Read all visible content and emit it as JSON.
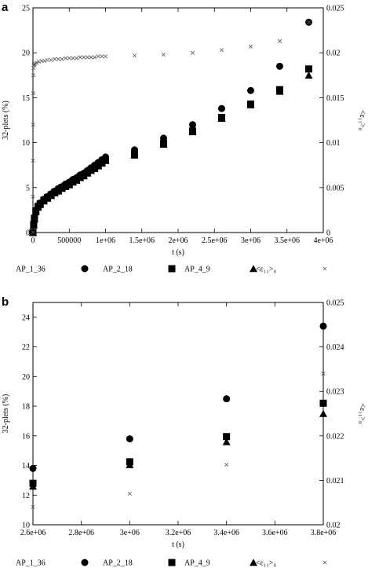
{
  "chart_data": [
    {
      "panel": "a",
      "type": "scatter",
      "xlabel": "t (s)",
      "ylabel": "32-plets (%)",
      "y2label": "<ε₁₁>₀",
      "xlim": [
        0,
        4000000
      ],
      "ylim": [
        0,
        25
      ],
      "y2lim": [
        0,
        0.025
      ],
      "xticks": [
        0,
        500000,
        1000000,
        1500000,
        2000000,
        2500000,
        3000000,
        3500000,
        4000000
      ],
      "xtick_labels": [
        "0",
        "500000",
        "1e+06",
        "1.5e+06",
        "2e+06",
        "2.5e+06",
        "3e+06",
        "3.5e+06",
        "4e+06"
      ],
      "yticks": [
        0,
        5,
        10,
        15,
        20,
        25
      ],
      "ytick_labels": [
        "0",
        "5",
        "10",
        "15",
        "20",
        "25"
      ],
      "y2ticks": [
        0,
        0.005,
        0.01,
        0.015,
        0.02,
        0.025
      ],
      "y2tick_labels": [
        "0",
        "0.005",
        "0.01",
        "0.015",
        "0.02",
        "0.025"
      ],
      "legend_position": "bottom",
      "series": [
        {
          "name": "AP_1_36",
          "marker": "circle",
          "axis": "left",
          "x": [
            0,
            10000,
            20000,
            40000,
            70000,
            100000,
            150000,
            200000,
            250000,
            300000,
            350000,
            400000,
            450000,
            500000,
            550000,
            600000,
            650000,
            700000,
            750000,
            800000,
            850000,
            900000,
            950000,
            1000000,
            1400000,
            1800000,
            2200000,
            2600000,
            3000000,
            3400000,
            3800000
          ],
          "y": [
            0,
            1.0,
            1.7,
            2.5,
            3.0,
            3.3,
            3.7,
            4.0,
            4.3,
            4.6,
            4.9,
            5.1,
            5.4,
            5.6,
            5.9,
            6.1,
            6.4,
            6.6,
            6.9,
            7.2,
            7.5,
            7.8,
            8.1,
            8.4,
            9.2,
            10.5,
            12.0,
            13.8,
            15.8,
            18.5,
            23.4
          ]
        },
        {
          "name": "AP_2_18",
          "marker": "square",
          "axis": "left",
          "x": [
            0,
            10000,
            20000,
            40000,
            70000,
            100000,
            150000,
            200000,
            250000,
            300000,
            350000,
            400000,
            450000,
            500000,
            550000,
            600000,
            650000,
            700000,
            750000,
            800000,
            850000,
            900000,
            950000,
            1000000,
            1400000,
            1800000,
            2200000,
            2600000,
            3000000,
            3400000,
            3800000
          ],
          "y": [
            0,
            0.9,
            1.6,
            2.4,
            2.9,
            3.2,
            3.6,
            3.9,
            4.2,
            4.5,
            4.7,
            5.0,
            5.2,
            5.4,
            5.7,
            5.9,
            6.2,
            6.4,
            6.7,
            7.0,
            7.2,
            7.5,
            7.8,
            8.1,
            8.7,
            9.9,
            11.3,
            12.8,
            14.3,
            15.9,
            18.2
          ]
        },
        {
          "name": "AP_4_9",
          "marker": "triangle",
          "axis": "left",
          "x": [
            0,
            10000,
            20000,
            40000,
            70000,
            100000,
            150000,
            200000,
            250000,
            300000,
            350000,
            400000,
            450000,
            500000,
            550000,
            600000,
            650000,
            700000,
            750000,
            800000,
            850000,
            900000,
            950000,
            1000000,
            1400000,
            1800000,
            2200000,
            2600000,
            3000000,
            3400000,
            3800000
          ],
          "y": [
            0,
            0.8,
            1.5,
            2.3,
            2.8,
            3.1,
            3.5,
            3.8,
            4.1,
            4.4,
            4.6,
            4.9,
            5.1,
            5.3,
            5.6,
            5.8,
            6.1,
            6.3,
            6.6,
            6.9,
            7.1,
            7.4,
            7.7,
            8.0,
            8.6,
            9.8,
            11.2,
            12.7,
            14.2,
            15.7,
            17.5
          ]
        },
        {
          "name": "<ε₁₁>₀",
          "marker": "cross",
          "axis": "right",
          "x": [
            0,
            0,
            0,
            2000,
            4000,
            6000,
            8000,
            10000,
            15000,
            20000,
            30000,
            50000,
            80000,
            120000,
            160000,
            200000,
            250000,
            300000,
            350000,
            400000,
            450000,
            500000,
            550000,
            600000,
            650000,
            700000,
            750000,
            800000,
            850000,
            900000,
            950000,
            1000000,
            1400000,
            1800000,
            2200000,
            2600000,
            3000000,
            3400000,
            3800000
          ],
          "y": [
            0.0,
            0.004,
            0.008,
            0.012,
            0.0155,
            0.0175,
            0.0183,
            0.0186,
            0.0187,
            0.0187,
            0.0188,
            0.0189,
            0.019,
            0.0191,
            0.0191,
            0.0192,
            0.0192,
            0.0193,
            0.0193,
            0.0193,
            0.0194,
            0.0194,
            0.0194,
            0.0194,
            0.0195,
            0.0195,
            0.0195,
            0.0195,
            0.0195,
            0.0196,
            0.0196,
            0.0196,
            0.0197,
            0.0198,
            0.02,
            0.0203,
            0.0207,
            0.0213,
            0.0234
          ]
        }
      ]
    },
    {
      "panel": "b",
      "type": "scatter",
      "xlabel": "t (s)",
      "ylabel": "32-plets (%)",
      "y2label": "<ε₁₁>₀",
      "xlim": [
        2600000,
        3800000
      ],
      "ylim": [
        10,
        25
      ],
      "y2lim": [
        0.02,
        0.025
      ],
      "xticks": [
        2600000,
        2800000,
        3000000,
        3200000,
        3400000,
        3600000,
        3800000
      ],
      "xtick_labels": [
        "2.6e+06",
        "2.8e+06",
        "3e+06",
        "3.2e+06",
        "3.4e+06",
        "3.6e+06",
        "3.8e+06"
      ],
      "yticks": [
        10,
        12,
        14,
        16,
        18,
        20,
        22,
        24
      ],
      "ytick_labels": [
        "10",
        "12",
        "14",
        "16",
        "18",
        "20",
        "22",
        "24"
      ],
      "y2ticks": [
        0.02,
        0.021,
        0.022,
        0.023,
        0.024,
        0.025
      ],
      "y2tick_labels": [
        "0.02",
        "0.021",
        "0.022",
        "0.023",
        "0.024",
        "0.025"
      ],
      "legend_position": "bottom",
      "series": [
        {
          "name": "AP_1_36",
          "marker": "circle",
          "axis": "left",
          "x": [
            2600000,
            3000000,
            3400000,
            3800000
          ],
          "y": [
            13.8,
            15.8,
            18.5,
            23.4
          ]
        },
        {
          "name": "AP_2_18",
          "marker": "square",
          "axis": "left",
          "x": [
            2600000,
            3000000,
            3400000,
            3800000
          ],
          "y": [
            12.8,
            14.25,
            15.95,
            18.2
          ]
        },
        {
          "name": "AP_4_9",
          "marker": "triangle",
          "axis": "left",
          "x": [
            2600000,
            3000000,
            3400000,
            3800000
          ],
          "y": [
            12.6,
            14.05,
            15.6,
            17.5
          ]
        },
        {
          "name": "<ε₁₁>₀",
          "marker": "cross",
          "axis": "right",
          "x": [
            2600000,
            3000000,
            3400000,
            3800000
          ],
          "y": [
            0.0204,
            0.0207,
            0.02135,
            0.0234
          ]
        }
      ]
    }
  ]
}
